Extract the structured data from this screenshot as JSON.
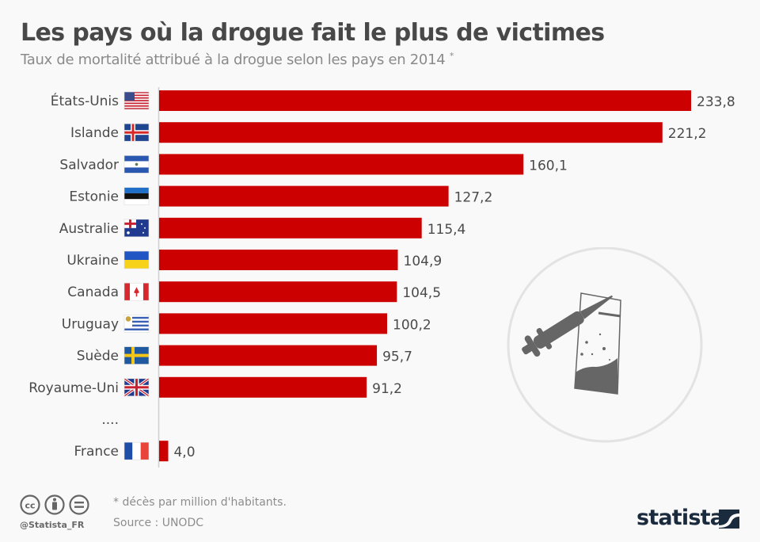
{
  "header": {
    "title": "Les pays où la drogue fait le plus de victimes",
    "subtitle": "Taux de mortalité attribué à la drogue selon les pays en 2014",
    "subtitle_mark": "*"
  },
  "chart_data": {
    "type": "bar",
    "orientation": "horizontal",
    "title": "Les pays où la drogue fait le plus de victimes",
    "subtitle": "Taux de mortalité attribué à la drogue selon les pays en 2014 *",
    "xlabel": "",
    "ylabel": "",
    "unit": "décès par million d'habitants",
    "xlim": [
      0,
      233.8
    ],
    "grid": false,
    "legend": "none",
    "bar_color": "#cc0000",
    "categories": [
      "États-Unis",
      "Islande",
      "Salvador",
      "Estonie",
      "Australie",
      "Ukraine",
      "Canada",
      "Uruguay",
      "Suède",
      "Royaume-Uni",
      "France"
    ],
    "values": [
      233.8,
      221.2,
      160.1,
      127.2,
      115.4,
      104.9,
      104.5,
      100.2,
      95.7,
      91.2,
      4.0
    ],
    "value_labels": [
      "233,8",
      "221,2",
      "160,1",
      "127,2",
      "115,4",
      "104,9",
      "104,5",
      "100,2",
      "95,7",
      "91,2",
      "4,0"
    ],
    "flags": [
      "us",
      "is",
      "sv",
      "ee",
      "au",
      "ua",
      "ca",
      "uy",
      "se",
      "gb",
      "fr"
    ],
    "gap_label": "....",
    "gap_before_index": 10
  },
  "footer": {
    "footnote": "* décès par million d'habitants.",
    "source": "Source : UNODC",
    "handle": "@Statista_FR",
    "license_icons": [
      "cc-icon",
      "attribution-icon",
      "no-derivatives-icon"
    ],
    "brand": "statista"
  },
  "illustration": {
    "icon": "syringe-and-bag-icon"
  }
}
